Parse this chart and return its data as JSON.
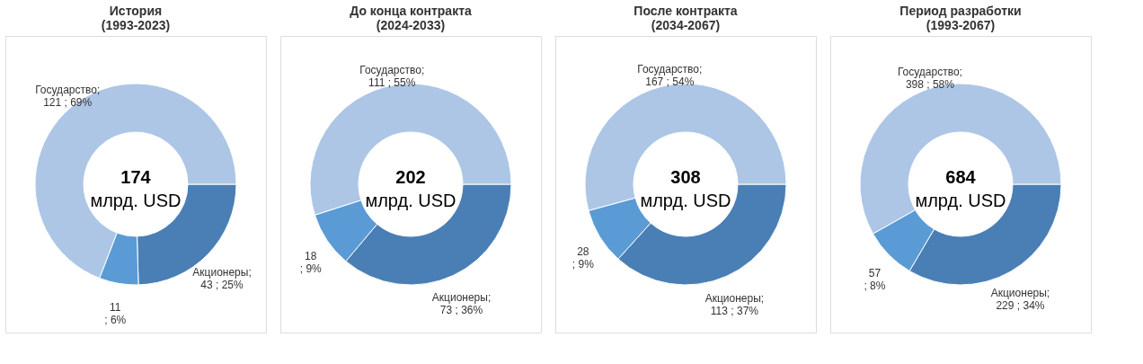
{
  "chart_data": [
    {
      "type": "donut",
      "title": "История\n(1993-2023)",
      "categories": [
        "Акционеры",
        null,
        "Государство"
      ],
      "values": [
        43,
        11,
        121
      ],
      "colors": [
        "#4a7fb5",
        "#5b9bd5",
        "#adc6e6"
      ],
      "value_labels": [
        ";\n43 ; 25%",
        "11\n; 6%",
        ";\n121 ; 69%"
      ],
      "annotations": [
        "174",
        "млрд. USD"
      ]
    },
    {
      "type": "donut",
      "title": "До конца контракта\n(2024-2033)",
      "categories": [
        "Акционеры",
        null,
        "Государство"
      ],
      "values": [
        73,
        18,
        111
      ],
      "colors": [
        "#4a7fb5",
        "#5b9bd5",
        "#adc6e6"
      ],
      "value_labels": [
        ";\n73 ; 36%",
        "18\n; 9%",
        ";\n111 ; 55%"
      ],
      "annotations": [
        "202",
        "млрд. USD"
      ]
    },
    {
      "type": "donut",
      "title": "После контракта\n(2034-2067)",
      "categories": [
        "Акционеры",
        null,
        "Государство"
      ],
      "values": [
        113,
        28,
        167
      ],
      "colors": [
        "#4a7fb5",
        "#5b9bd5",
        "#adc6e6"
      ],
      "value_labels": [
        ";\n113 ; 37%",
        "28\n; 9%",
        ";\n167 ; 54%"
      ],
      "annotations": [
        "308",
        "млрд. USD"
      ]
    },
    {
      "type": "donut",
      "title": "Период разработки\n(1993-2067)",
      "categories": [
        "Акционеры",
        null,
        "Государство"
      ],
      "values": [
        229,
        57,
        398
      ],
      "colors": [
        "#4a7fb5",
        "#5b9bd5",
        "#adc6e6"
      ],
      "value_labels": [
        ";\n229 ; 34%",
        "57\n; 8%",
        ";\n398 ; 58%"
      ],
      "annotations": [
        "684",
        "млрд. USD"
      ]
    }
  ]
}
